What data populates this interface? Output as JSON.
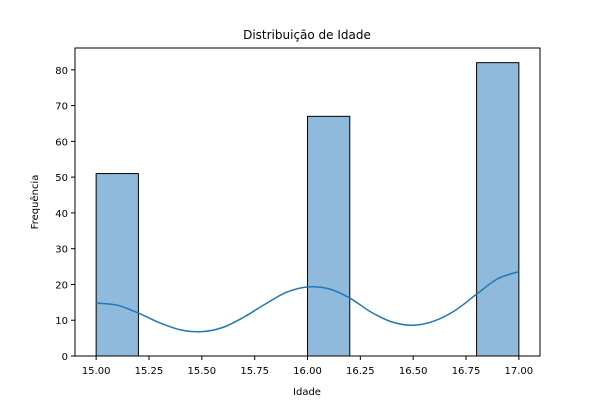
{
  "chart_data": {
    "type": "bar",
    "title": "Distribuição de Idade",
    "xlabel": "Idade",
    "ylabel": "Frequência",
    "xlim": [
      14.9,
      17.1
    ],
    "ylim": [
      0,
      86.1
    ],
    "grid": false,
    "legend": "none",
    "xticks": [
      15.0,
      15.25,
      15.5,
      15.75,
      16.0,
      16.25,
      16.5,
      16.75,
      17.0
    ],
    "xtick_labels": [
      "15.00",
      "15.25",
      "15.50",
      "15.75",
      "16.00",
      "16.25",
      "16.50",
      "16.75",
      "17.00"
    ],
    "yticks": [
      0,
      10,
      20,
      30,
      40,
      50,
      60,
      70,
      80
    ],
    "ytick_labels": [
      "0",
      "10",
      "20",
      "30",
      "40",
      "50",
      "60",
      "70",
      "80"
    ],
    "bins": [
      {
        "x0": 15.0,
        "x1": 15.2,
        "count": 51
      },
      {
        "x0": 16.0,
        "x1": 16.2,
        "count": 67
      },
      {
        "x0": 16.8,
        "x1": 17.0,
        "count": 82
      }
    ],
    "kde": {
      "x": [
        15.0,
        15.1,
        15.2,
        15.3,
        15.4,
        15.5,
        15.6,
        15.7,
        15.8,
        15.9,
        16.0,
        16.1,
        16.2,
        16.3,
        16.4,
        16.5,
        16.6,
        16.7,
        16.8,
        16.9,
        17.0
      ],
      "y": [
        14.8,
        14.2,
        12.0,
        9.3,
        7.3,
        6.8,
        8.0,
        10.9,
        14.5,
        17.8,
        19.3,
        18.8,
        16.2,
        12.3,
        9.5,
        8.6,
        9.8,
        12.8,
        17.3,
        21.6,
        23.6
      ]
    },
    "colors": {
      "bar_fill": "#8fbadb",
      "bar_edge": "#000000",
      "kde_line": "#1f77b4"
    }
  }
}
